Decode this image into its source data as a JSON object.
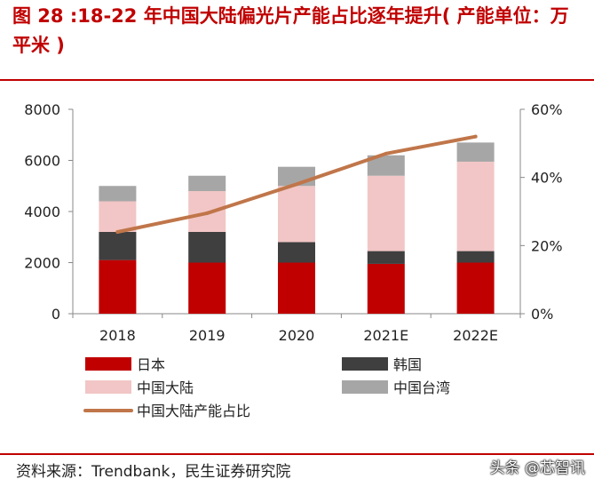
{
  "header": {
    "title": "图 28 :18-22 年中国大陆偏光片产能占比逐年提升( 产能单位：万平米 )"
  },
  "footer": {
    "source": "资料来源：Trendbank，民生证券研究院",
    "watermark": "头条 @芯智讯"
  },
  "chart_data": {
    "type": "bar",
    "stacked": true,
    "categories": [
      "2018",
      "2019",
      "2020",
      "2021E",
      "2022E"
    ],
    "ylim": [
      0,
      8000
    ],
    "yticks": [
      "0",
      "2000",
      "4000",
      "6000",
      "8000"
    ],
    "y2lim": [
      0,
      60
    ],
    "y2ticks": [
      "0%",
      "20%",
      "40%",
      "60%"
    ],
    "series": [
      {
        "name": "日本",
        "color": "#c00000",
        "values": [
          2100,
          2000,
          2000,
          1950,
          2000
        ]
      },
      {
        "name": "韩国",
        "color": "#3f3f3f",
        "values": [
          1100,
          1200,
          800,
          500,
          450
        ]
      },
      {
        "name": "中国大陆",
        "color": "#f2c6c6",
        "values": [
          1200,
          1600,
          2200,
          2950,
          3500
        ]
      },
      {
        "name": "中国台湾",
        "color": "#a6a6a6",
        "values": [
          600,
          600,
          750,
          800,
          750
        ]
      }
    ],
    "line": {
      "name": "中国大陆产能占比",
      "color": "#c0764a",
      "axis": "right",
      "values": [
        24,
        29.5,
        38,
        47,
        52
      ]
    },
    "legend_position": "bottom"
  },
  "colors": {
    "accent": "#c00000",
    "axis": "#888888"
  }
}
